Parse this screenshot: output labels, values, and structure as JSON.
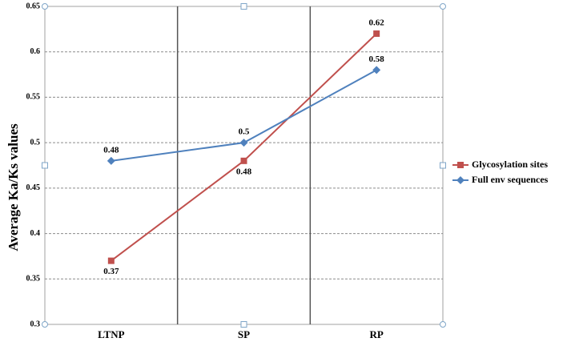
{
  "chart_data": {
    "type": "line",
    "y_label": "Average Ka/Ks values",
    "categories": [
      "LTNP",
      "SP",
      "RP"
    ],
    "series": [
      {
        "name": "Glycosylation sites",
        "color": "#c0504d",
        "marker": "square",
        "values": [
          0.37,
          0.48,
          0.62
        ]
      },
      {
        "name": "Full env sequences",
        "color": "#4f81bd",
        "marker": "diamond",
        "values": [
          0.48,
          0.5,
          0.58
        ]
      }
    ],
    "ylim": [
      0.3,
      0.65
    ],
    "yticks": [
      0.3,
      0.35,
      0.4,
      0.45,
      0.5,
      0.55,
      0.6,
      0.65
    ],
    "grid": true,
    "legend": "right"
  }
}
